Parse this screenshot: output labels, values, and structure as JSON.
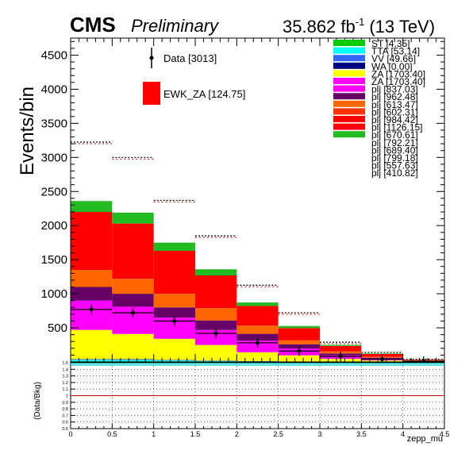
{
  "header": {
    "cms": "CMS",
    "preliminary": "Preliminary",
    "lumi": "35.862 fb",
    "lumi_sup": "-1",
    "energy": "(13 TeV)"
  },
  "chart_data": {
    "type": "bar",
    "stacked": true,
    "x_edges": [
      0,
      0.5,
      1,
      1.5,
      2,
      2.5,
      3,
      3.5,
      4,
      4.5
    ],
    "xlabel": "zepp_mu",
    "ylabel": "Events/bin",
    "ylim": [
      0,
      4750
    ],
    "xlim": [
      0,
      4.5
    ],
    "yticks": [
      "500",
      "1000",
      "1500",
      "2000",
      "2500",
      "3000",
      "3500",
      "4000",
      "4500"
    ],
    "xticks": [
      "0",
      "0.5",
      "1",
      "1.5",
      "2",
      "2.5",
      "3",
      "3.5",
      "4",
      "4.5"
    ],
    "stack_layers": [
      {
        "color": "#00cc00",
        "values": [
          10,
          10,
          8,
          5,
          3,
          2,
          1,
          1,
          0
        ]
      },
      {
        "color": "#00ffff",
        "values": [
          22,
          20,
          14,
          8,
          5,
          3,
          2,
          1,
          0
        ]
      },
      {
        "color": "#3366ff",
        "values": [
          5,
          5,
          4,
          3,
          2,
          1,
          1,
          0,
          0
        ]
      },
      {
        "color": "#000080",
        "values": [
          5,
          5,
          4,
          3,
          2,
          1,
          1,
          0,
          0
        ]
      },
      {
        "color": "#ffff00",
        "values": [
          428,
          370,
          310,
          230,
          130,
          90,
          40,
          20,
          6
        ]
      },
      {
        "color": "#ff00ff",
        "values": [
          430,
          400,
          310,
          220,
          170,
          100,
          50,
          25,
          8
        ]
      },
      {
        "color": "#660066",
        "values": [
          200,
          190,
          150,
          140,
          100,
          60,
          30,
          15,
          5
        ]
      },
      {
        "color": "#ff6600",
        "values": [
          250,
          220,
          200,
          180,
          120,
          60,
          30,
          15,
          5
        ]
      },
      {
        "color": "#ff0000",
        "values": [
          850,
          810,
          630,
          480,
          290,
          180,
          80,
          40,
          8
        ]
      },
      {
        "color": "#22bb22",
        "values": [
          160,
          160,
          120,
          90,
          50,
          30,
          15,
          8,
          2
        ]
      }
    ],
    "white_layer_tops": [
      3225,
      3000,
      2370,
      1850,
      1125,
      720,
      290,
      140,
      40
    ],
    "data_points": [
      {
        "x": 0.25,
        "y": 770
      },
      {
        "x": 0.75,
        "y": 720
      },
      {
        "x": 1.25,
        "y": 600
      },
      {
        "x": 1.75,
        "y": 420
      },
      {
        "x": 2.25,
        "y": 280
      },
      {
        "x": 2.75,
        "y": 160
      },
      {
        "x": 3.25,
        "y": 80
      },
      {
        "x": 3.75,
        "y": 40
      },
      {
        "x": 4.25,
        "y": 10
      }
    ],
    "legend_left": [
      {
        "label": "Data [3013]",
        "kind": "marker",
        "color": "#000000"
      },
      {
        "label": "EWK_ZA [124.75]",
        "kind": "box",
        "color": "#ff0000"
      }
    ],
    "legend_right": [
      {
        "label": "ST [4.35]",
        "color": "#00cc00"
      },
      {
        "label": "TTA [53.14]",
        "color": "#00ffff"
      },
      {
        "label": "VV [49.66]",
        "color": "#3366ff"
      },
      {
        "label": "WA [0.00]",
        "color": "#000080"
      },
      {
        "label": "ZA [1703.40]",
        "color": "#ffff00"
      },
      {
        "label": "ZA [1703.40]",
        "color": "#ff00ff"
      },
      {
        "label": "plj [837.03]",
        "color": "#ff00ff"
      },
      {
        "label": "plj [962.48]",
        "color": "#660066"
      },
      {
        "label": "plj [613.47]",
        "color": "#ff6600"
      },
      {
        "label": "plj [602.31]",
        "color": "#ff3300"
      },
      {
        "label": "plj [984.42]",
        "color": "#ff0000"
      },
      {
        "label": "plj [1126.15]",
        "color": "#ff0000"
      },
      {
        "label": "plj [670.61]",
        "color": "#22bb22"
      },
      {
        "label": "plj [792.21]",
        "color": null
      },
      {
        "label": "plj [689.40]",
        "color": null
      },
      {
        "label": "plj [799.18]",
        "color": null
      },
      {
        "label": "plj [557.63]",
        "color": null
      },
      {
        "label": "plj [410.82]",
        "color": null
      }
    ],
    "ratio": {
      "ylabel": "(Data/Bkg)",
      "ylim": [
        0.5,
        1.5
      ],
      "yticks": [
        "0.5",
        "0.6",
        "0.7",
        "0.8",
        "0.9",
        "1",
        "1.1",
        "1.2",
        "1.3",
        "1.4",
        "1.5"
      ],
      "reference_line": 1.0,
      "reference_color": "#cc0000"
    }
  }
}
